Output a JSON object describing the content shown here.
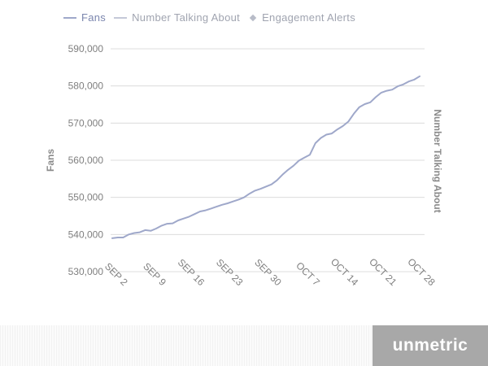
{
  "legend": {
    "fans": "Fans",
    "talking": "Number Talking About",
    "alerts": "Engagement Alerts"
  },
  "brand": "unmetric",
  "colors": {
    "fans_line": "#9fa8ca",
    "axis_text": "#7f7f7f",
    "grid": "#dcdcdc",
    "brand_bg": "#a8a8a8"
  },
  "chart_data": {
    "type": "line",
    "y_title": "Fans",
    "y2_title": "Number Talking About",
    "ylim": [
      530000,
      590000
    ],
    "y_ticks": [
      "530,000",
      "540,000",
      "550,000",
      "560,000",
      "570,000",
      "580,000",
      "590,000"
    ],
    "y_tick_values": [
      530000,
      540000,
      550000,
      560000,
      570000,
      580000,
      590000
    ],
    "x_ticks": [
      {
        "label": "SEP 2",
        "index": 0
      },
      {
        "label": "SEP 9",
        "index": 7
      },
      {
        "label": "SEP 16",
        "index": 14
      },
      {
        "label": "SEP 23",
        "index": 21
      },
      {
        "label": "SEP 30",
        "index": 28
      },
      {
        "label": "OCT 7",
        "index": 35
      },
      {
        "label": "OCT 14",
        "index": 42
      },
      {
        "label": "OCT 21",
        "index": 49
      },
      {
        "label": "OCT 28",
        "index": 56
      }
    ],
    "grid": true,
    "series": [
      {
        "name": "Fans",
        "values": [
          539000,
          539200,
          539200,
          540000,
          540400,
          540600,
          541200,
          541000,
          541600,
          542400,
          542900,
          543000,
          543800,
          544300,
          544800,
          545500,
          546200,
          546500,
          547000,
          547500,
          548000,
          548400,
          548900,
          549400,
          550000,
          551000,
          551800,
          552300,
          552900,
          553500,
          554600,
          556100,
          557400,
          558500,
          559900,
          560700,
          561500,
          564600,
          566000,
          566900,
          567200,
          568300,
          569200,
          570400,
          572500,
          574300,
          575100,
          575600,
          577000,
          578200,
          578700,
          579000,
          579900,
          580400,
          581200,
          581700,
          582600
        ]
      }
    ]
  }
}
